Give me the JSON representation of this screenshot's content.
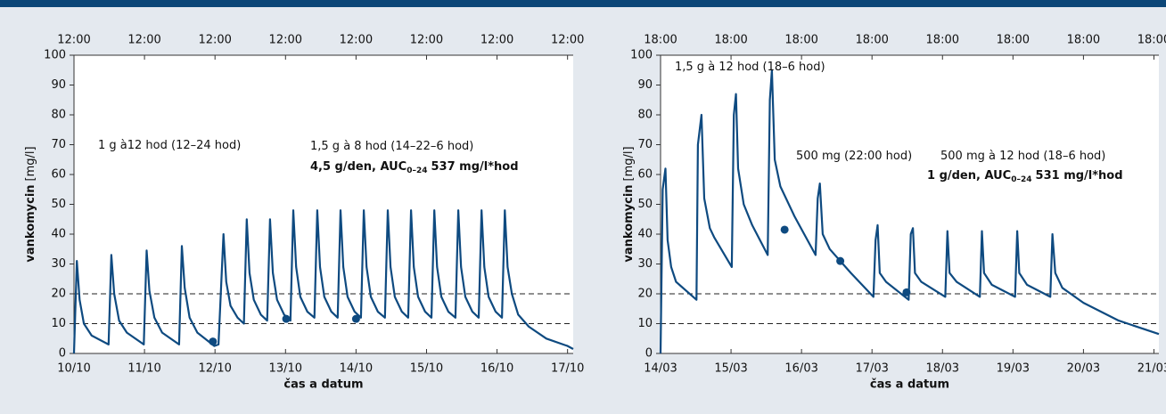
{
  "chart_data": [
    {
      "type": "line",
      "ylabel": "vankomycin",
      "ylabel_unit": "[mg/l]",
      "xlabel": "čas a datum",
      "xlim": [
        0,
        7.08
      ],
      "ylim": [
        0,
        100
      ],
      "yticks": [
        0,
        10,
        20,
        30,
        40,
        50,
        60,
        70,
        80,
        90,
        100
      ],
      "xticks": [
        {
          "value": 0,
          "label": "10/10"
        },
        {
          "value": 1,
          "label": "11/10"
        },
        {
          "value": 2,
          "label": "12/10"
        },
        {
          "value": 3,
          "label": "13/10"
        },
        {
          "value": 4,
          "label": "14/10"
        },
        {
          "value": 5,
          "label": "15/10"
        },
        {
          "value": 6,
          "label": "16/10"
        },
        {
          "value": 7,
          "label": "17/10"
        }
      ],
      "x2ticks": [
        {
          "value": 0,
          "label": "12:00"
        },
        {
          "value": 1,
          "label": "12:00"
        },
        {
          "value": 2,
          "label": "12:00"
        },
        {
          "value": 3,
          "label": "12:00"
        },
        {
          "value": 4,
          "label": "12:00"
        },
        {
          "value": 5,
          "label": "12:00"
        },
        {
          "value": 6,
          "label": "12:00"
        },
        {
          "value": 7,
          "label": "12:00"
        }
      ],
      "reference_lines": [
        10,
        20
      ],
      "series": [
        {
          "color": "#0e4a80",
          "x": [
            0,
            0.04,
            0.08,
            0.14,
            0.25,
            0.49,
            0.53,
            0.57,
            0.64,
            0.75,
            0.99,
            1.03,
            1.07,
            1.14,
            1.25,
            1.49,
            1.53,
            1.57,
            1.64,
            1.75,
            1.99,
            2.05,
            2.12,
            2.16,
            2.22,
            2.32,
            2.41,
            2.45,
            2.49,
            2.55,
            2.65,
            2.74,
            2.78,
            2.82,
            2.88,
            2.98,
            3.07,
            3.11,
            3.15,
            3.21,
            3.31,
            3.41,
            3.45,
            3.49,
            3.55,
            3.65,
            3.74,
            3.78,
            3.82,
            3.88,
            3.98,
            4.07,
            4.11,
            4.15,
            4.21,
            4.31,
            4.41,
            4.45,
            4.49,
            4.55,
            4.65,
            4.74,
            4.78,
            4.82,
            4.88,
            4.98,
            5.07,
            5.11,
            5.15,
            5.21,
            5.31,
            5.41,
            5.45,
            5.49,
            5.55,
            5.65,
            5.74,
            5.78,
            5.82,
            5.88,
            5.98,
            6.07,
            6.11,
            6.15,
            6.21,
            6.3,
            6.45,
            6.7,
            7.0,
            7.08
          ],
          "values": [
            0,
            31,
            18,
            10,
            6,
            3,
            33,
            20,
            11,
            7,
            3,
            34.5,
            21,
            12,
            7,
            3,
            36,
            22,
            12,
            7,
            2.5,
            3,
            40,
            24,
            16,
            12,
            10,
            45,
            27,
            18,
            13,
            11,
            45,
            27,
            18,
            13,
            11,
            48,
            29,
            19,
            14,
            12,
            48,
            29,
            19,
            14,
            12,
            48,
            29,
            19,
            14,
            12,
            48,
            29,
            19,
            14,
            12,
            48,
            29,
            19,
            14,
            12,
            48,
            29,
            19,
            14,
            12,
            48,
            29,
            19,
            14,
            12,
            48,
            29,
            19,
            14,
            12,
            48,
            29,
            19,
            14,
            12,
            48,
            29,
            20,
            13,
            9,
            5,
            2.5,
            1.5
          ]
        }
      ],
      "points": {
        "color": "#0e4a80",
        "x": [
          1.97,
          3.01,
          4.0
        ],
        "values": [
          4,
          11.6,
          11.6
        ]
      },
      "annotations": [
        {
          "text": "1 g à12 hod (12–24 hod)"
        },
        {
          "text": "1,5 g à 8 hod (14–22–6 hod)"
        },
        {
          "text": "4,5 g/den, AUC",
          "sub": "0–24",
          "rest": "537 mg/l*hod"
        }
      ]
    },
    {
      "type": "line",
      "ylabel": "vankomycin",
      "ylabel_unit": "[mg/l]",
      "xlabel": "čas a datum",
      "xlim": [
        0,
        7.07
      ],
      "ylim": [
        0,
        100
      ],
      "yticks": [
        0,
        10,
        20,
        30,
        40,
        50,
        60,
        70,
        80,
        90,
        100
      ],
      "xticks": [
        {
          "value": 0,
          "label": "14/03"
        },
        {
          "value": 1,
          "label": "15/03"
        },
        {
          "value": 2,
          "label": "16/03"
        },
        {
          "value": 3,
          "label": "17/03"
        },
        {
          "value": 4,
          "label": "18/03"
        },
        {
          "value": 5,
          "label": "19/03"
        },
        {
          "value": 6,
          "label": "20/03"
        },
        {
          "value": 7,
          "label": "21/03"
        }
      ],
      "x2ticks": [
        {
          "value": 0,
          "label": "18:00"
        },
        {
          "value": 1,
          "label": "18:00"
        },
        {
          "value": 2,
          "label": "18:00"
        },
        {
          "value": 3,
          "label": "18:00"
        },
        {
          "value": 4,
          "label": "18:00"
        },
        {
          "value": 5,
          "label": "18:00"
        },
        {
          "value": 6,
          "label": "18:00"
        },
        {
          "value": 7,
          "label": "18:00"
        }
      ],
      "reference_lines": [
        10,
        20
      ],
      "series": [
        {
          "color": "#0e4a80",
          "x": [
            0,
            0.03,
            0.07,
            0.1,
            0.15,
            0.22,
            0.51,
            0.53,
            0.58,
            0.62,
            0.7,
            0.76,
            1.01,
            1.04,
            1.07,
            1.1,
            1.18,
            1.3,
            1.52,
            1.55,
            1.58,
            1.62,
            1.7,
            1.9,
            2.2,
            2.23,
            2.26,
            2.3,
            2.4,
            2.7,
            3.02,
            3.05,
            3.08,
            3.11,
            3.2,
            3.52,
            3.55,
            3.58,
            3.61,
            3.7,
            4.04,
            4.07,
            4.1,
            4.2,
            4.53,
            4.56,
            4.59,
            4.7,
            5.03,
            5.06,
            5.09,
            5.2,
            5.53,
            5.56,
            5.6,
            5.7,
            6.0,
            6.5,
            7.07
          ],
          "values": [
            0,
            55,
            62,
            38,
            29,
            24,
            18,
            70,
            80,
            52,
            42,
            39,
            29,
            80,
            87,
            62,
            50,
            43,
            33,
            85,
            95,
            65,
            56,
            46,
            33,
            52,
            57,
            40,
            35,
            27,
            19,
            38,
            43,
            27,
            24,
            18,
            40,
            42,
            27,
            24,
            19,
            41,
            27,
            24,
            19,
            41,
            27,
            23,
            19,
            41,
            27,
            23,
            19,
            40,
            27,
            22,
            17,
            11,
            6.5
          ]
        }
      ],
      "points": {
        "color": "#0e4a80",
        "x": [
          1.76,
          2.55,
          3.49
        ],
        "values": [
          41.5,
          31,
          20.5
        ]
      },
      "annotations": [
        {
          "text": "1,5 g à 12 hod (18–6 hod)"
        },
        {
          "text": "500 mg (22:00 hod)"
        },
        {
          "text": "500 mg à 12 hod (18–6 hod)"
        },
        {
          "text": "1 g/den, AUC",
          "sub": "0–24",
          "rest": "531 mg/l*hod"
        }
      ]
    }
  ]
}
